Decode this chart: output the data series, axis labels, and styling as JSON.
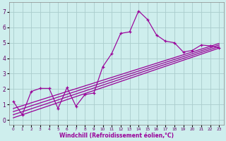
{
  "xlabel": "Windchill (Refroidissement éolien,°C)",
  "background_color": "#ceeeed",
  "line_color": "#990099",
  "grid_color": "#aacccc",
  "xlim": [
    -0.5,
    23.5
  ],
  "ylim": [
    -0.3,
    7.6
  ],
  "xtick_vals": [
    0,
    1,
    2,
    3,
    4,
    5,
    6,
    7,
    8,
    9,
    10,
    11,
    12,
    13,
    14,
    15,
    16,
    17,
    18,
    19,
    20,
    21,
    22,
    23
  ],
  "ytick_vals": [
    0,
    1,
    2,
    3,
    4,
    5,
    6,
    7
  ],
  "scatter_x": [
    0,
    1,
    2,
    3,
    4,
    5,
    6,
    7,
    8,
    9,
    10,
    11,
    12,
    13,
    14,
    15,
    16,
    17,
    18,
    19,
    20,
    21,
    22,
    23
  ],
  "scatter_y": [
    1.2,
    0.35,
    1.85,
    2.05,
    2.05,
    0.75,
    2.1,
    0.9,
    1.65,
    1.75,
    3.45,
    4.3,
    5.6,
    5.7,
    7.05,
    6.5,
    5.5,
    5.1,
    5.0,
    4.4,
    4.5,
    4.85,
    4.8,
    4.65
  ],
  "reg_lines": [
    {
      "x0": 0,
      "y0": 0.15,
      "x1": 23,
      "y1": 4.65
    },
    {
      "x0": 0,
      "y0": 0.35,
      "x1": 23,
      "y1": 4.75
    },
    {
      "x0": 0,
      "y0": 0.55,
      "x1": 23,
      "y1": 4.85
    },
    {
      "x0": 0,
      "y0": 0.75,
      "x1": 23,
      "y1": 4.95
    }
  ]
}
